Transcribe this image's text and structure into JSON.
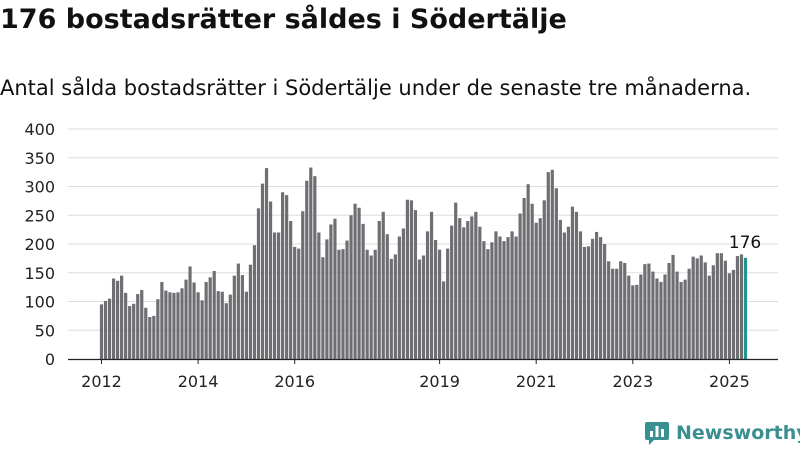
{
  "title": "176 bostadsrätter såldes i Södertälje",
  "subtitle": "Antal sålda bostadsrätter i Södertälje under de senaste tre månaderna.",
  "brand": {
    "name": "Newsworthy"
  },
  "colors": {
    "bar": "#6f6e73",
    "highlight": "#21968f",
    "grid": "#dddddd",
    "axis": "#222222",
    "brand": "#3a8f91"
  },
  "chart_data": {
    "type": "bar",
    "title": "176 bostadsrätter såldes i Södertälje",
    "subtitle": "Antal sålda bostadsrätter i Södertälje under de senaste tre månaderna.",
    "xlabel": "",
    "ylabel": "",
    "ylim": [
      0,
      400
    ],
    "yticks": [
      0,
      50,
      100,
      150,
      200,
      250,
      300,
      350,
      400
    ],
    "grid": true,
    "x_start": "2012-01",
    "x_step": "month",
    "x_ticks": [
      "2012",
      "2014",
      "2016",
      "2019",
      "2021",
      "2023",
      "2025"
    ],
    "x_tick_positions": [
      0,
      24,
      48,
      84,
      108,
      132,
      156
    ],
    "highlight_index": 160,
    "highlight_label": "176",
    "values": [
      95,
      101,
      105,
      140,
      136,
      145,
      115,
      92,
      96,
      113,
      120,
      89,
      73,
      75,
      104,
      134,
      119,
      116,
      115,
      116,
      123,
      138,
      161,
      133,
      116,
      102,
      134,
      142,
      153,
      118,
      117,
      97,
      112,
      145,
      166,
      146,
      117,
      164,
      198,
      262,
      305,
      332,
      274,
      220,
      220,
      290,
      285,
      240,
      195,
      192,
      257,
      310,
      333,
      318,
      220,
      177,
      208,
      234,
      244,
      190,
      191,
      206,
      250,
      270,
      263,
      235,
      190,
      180,
      190,
      240,
      256,
      217,
      174,
      182,
      213,
      227,
      277,
      276,
      259,
      173,
      180,
      222,
      256,
      207,
      190,
      135,
      192,
      232,
      272,
      245,
      229,
      240,
      248,
      256,
      230,
      205,
      191,
      203,
      222,
      213,
      205,
      212,
      222,
      213,
      253,
      280,
      304,
      270,
      237,
      245,
      276,
      325,
      329,
      297,
      242,
      220,
      230,
      265,
      256,
      222,
      195,
      196,
      209,
      221,
      212,
      200,
      170,
      157,
      157,
      170,
      167,
      145,
      128,
      129,
      147,
      165,
      166,
      152,
      140,
      134,
      147,
      167,
      181,
      152,
      134,
      138,
      157,
      178,
      175,
      180,
      168,
      145,
      163,
      184,
      184,
      171,
      149,
      155,
      179,
      182,
      176
    ]
  }
}
